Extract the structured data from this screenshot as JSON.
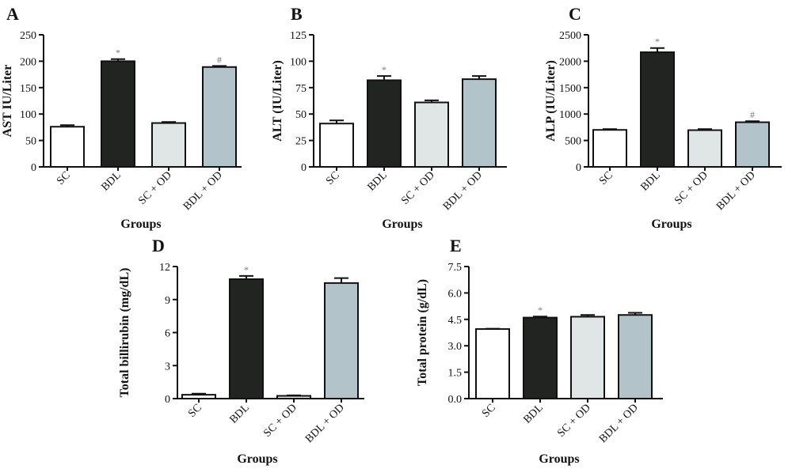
{
  "categories": [
    "SC",
    "BDL",
    "SC + OD",
    "BDL + OD"
  ],
  "colors": [
    "#ffffff",
    "#212421",
    "#e0e6e6",
    "#b2c3ca"
  ],
  "chart_data": [
    {
      "type": "bar",
      "letter": "A",
      "ylabel": "AST IU/Liter",
      "xlabel": "Groups",
      "ylim": [
        0,
        250
      ],
      "yticks": [
        0,
        50,
        100,
        150,
        200,
        250
      ],
      "categories": [
        "SC",
        "BDL",
        "SC + OD",
        "BDL + OD"
      ],
      "values": [
        76,
        200,
        83,
        189
      ],
      "errors": [
        3,
        4,
        2,
        2
      ],
      "markers": [
        "",
        "*",
        "",
        "#"
      ]
    },
    {
      "type": "bar",
      "letter": "B",
      "ylabel": "ALT (IU/Liter)",
      "xlabel": "Groups",
      "ylim": [
        0,
        125
      ],
      "yticks": [
        0,
        25,
        50,
        75,
        100,
        125
      ],
      "categories": [
        "SC",
        "BDL",
        "SC + OD",
        "BDL + OD"
      ],
      "values": [
        41,
        82,
        61,
        83
      ],
      "errors": [
        3,
        4,
        2,
        3
      ],
      "markers": [
        "",
        "*",
        "",
        ""
      ]
    },
    {
      "type": "bar",
      "letter": "C",
      "ylabel": "ALP (IU/Liter)",
      "xlabel": "Groups",
      "ylim": [
        0,
        2500
      ],
      "yticks": [
        0,
        500,
        1000,
        1500,
        2000,
        2500
      ],
      "categories": [
        "SC",
        "BDL",
        "SC + OD",
        "BDL + OD"
      ],
      "values": [
        700,
        2170,
        695,
        845
      ],
      "errors": [
        15,
        80,
        20,
        20
      ],
      "markers": [
        "",
        "*",
        "",
        "#"
      ]
    },
    {
      "type": "bar",
      "letter": "D",
      "ylabel": "Total billirubin (mg/dL)",
      "xlabel": "Groups",
      "ylim": [
        0,
        12
      ],
      "yticks": [
        0,
        3,
        6,
        9,
        12
      ],
      "categories": [
        "SC",
        "BDL",
        "SC + OD",
        "BDL + OD"
      ],
      "values": [
        0.35,
        10.85,
        0.25,
        10.5
      ],
      "errors": [
        0.1,
        0.3,
        0.05,
        0.45
      ],
      "markers": [
        "",
        "*",
        "",
        ""
      ]
    },
    {
      "type": "bar",
      "letter": "E",
      "ylabel": "Total protein (g/dL)",
      "xlabel": "Groups",
      "ylim": [
        0,
        7.5
      ],
      "yticks": [
        0.0,
        1.5,
        3.0,
        4.5,
        6.0,
        7.5
      ],
      "yticklabels": [
        "0.0",
        "1.5",
        "3.0",
        "4.5",
        "6.0",
        "7.5"
      ],
      "categories": [
        "SC",
        "BDL",
        "SC + OD",
        "BDL + OD"
      ],
      "values": [
        3.95,
        4.6,
        4.65,
        4.75
      ],
      "errors": [
        0.02,
        0.06,
        0.1,
        0.12
      ],
      "markers": [
        "",
        "*",
        "",
        ""
      ]
    }
  ]
}
